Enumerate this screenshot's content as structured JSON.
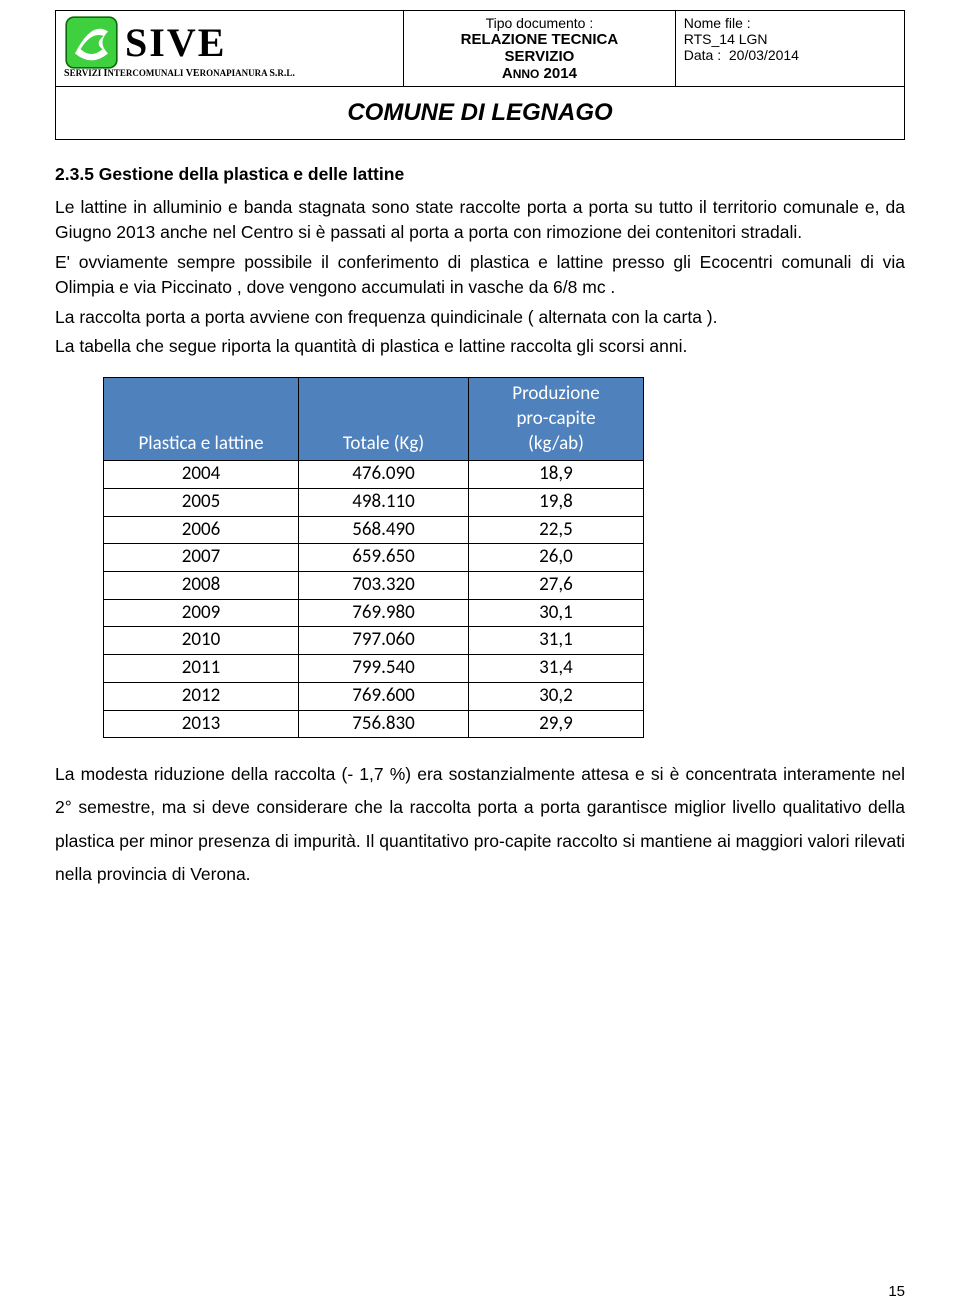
{
  "header": {
    "logo": {
      "name": "SIVE",
      "sub": "SERVIZI INTERCOMUNALI VERONAPIANURA S.R.L.",
      "colors": {
        "icon_bg": "#3fd03f",
        "icon_band": "#ffffff",
        "icon_border": "#005500"
      }
    },
    "doc_type": {
      "label": "Tipo documento :",
      "line1": "RELAZIONE TECNICA",
      "line2": "SERVIZIO",
      "line3": "ANNO 2014"
    },
    "file": {
      "name_label": "Nome file :",
      "name_value": "RTS_14 LGN",
      "date_label": "Data :",
      "date_value": "20/03/2014"
    },
    "title": "COMUNE DI LEGNAGO"
  },
  "section": {
    "heading": "2.3.5  Gestione della plastica e delle lattine",
    "p1": "Le lattine in alluminio e banda stagnata sono state raccolte porta a porta su tutto il territorio comunale e, da Giugno 2013 anche nel Centro si è passati al porta a porta con rimozione dei contenitori stradali.",
    "p2": "E' ovviamente sempre possibile il conferimento di plastica e lattine presso gli Ecocentri comunali di via Olimpia e via Piccinato , dove vengono accumulati in vasche da 6/8 mc .",
    "p3": "La raccolta porta a porta avviene con frequenza quindicinale ( alternata con la carta ).",
    "p4": "La tabella che segue riporta la quantità di plastica e lattine raccolta gli scorsi anni."
  },
  "table": {
    "type": "table",
    "header_bg": "#4f81bd",
    "header_fg": "#ffffff",
    "columns": [
      "Plastica e lattine",
      "Totale (Kg)",
      "Produzione pro-capite (kg/ab)"
    ],
    "col3_lines": [
      "Produzione",
      "pro-capite",
      "(kg/ab)"
    ],
    "rows": [
      [
        "2004",
        "476.090",
        "18,9"
      ],
      [
        "2005",
        "498.110",
        "19,8"
      ],
      [
        "2006",
        "568.490",
        "22,5"
      ],
      [
        "2007",
        "659.650",
        "26,0"
      ],
      [
        "2008",
        "703.320",
        "27,6"
      ],
      [
        "2009",
        "769.980",
        "30,1"
      ],
      [
        "2010",
        "797.060",
        "31,1"
      ],
      [
        "2011",
        "799.540",
        "31,4"
      ],
      [
        "2012",
        "769.600",
        "30,2"
      ],
      [
        "2013",
        "756.830",
        "29,9"
      ]
    ]
  },
  "footer_text": "La modesta riduzione della raccolta (- 1,7 %) era sostanzialmente attesa e si è concentrata interamente nel 2° semestre, ma si deve considerare che la raccolta porta a porta garantisce miglior livello qualitativo della plastica per minor presenza di impurità. Il quantitativo pro-capite raccolto si mantiene ai maggiori valori rilevati nella provincia di Verona.",
  "page_number": "15"
}
